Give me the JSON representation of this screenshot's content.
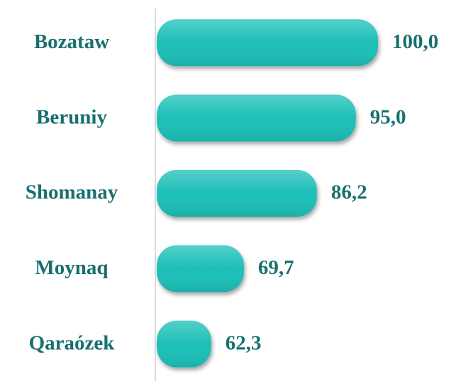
{
  "chart_data": {
    "type": "hbar",
    "categories": [
      "Bozataw",
      "Beruniy",
      "Shomanay",
      "Moynaq",
      "Qaraózek"
    ],
    "values": [
      100.0,
      95.0,
      86.2,
      69.7,
      62.3
    ],
    "value_labels": [
      "100,0",
      "95,0",
      "86,2",
      "69,7",
      "62,3"
    ],
    "color": "#1fbfb8",
    "xlim": [
      50,
      100
    ]
  }
}
